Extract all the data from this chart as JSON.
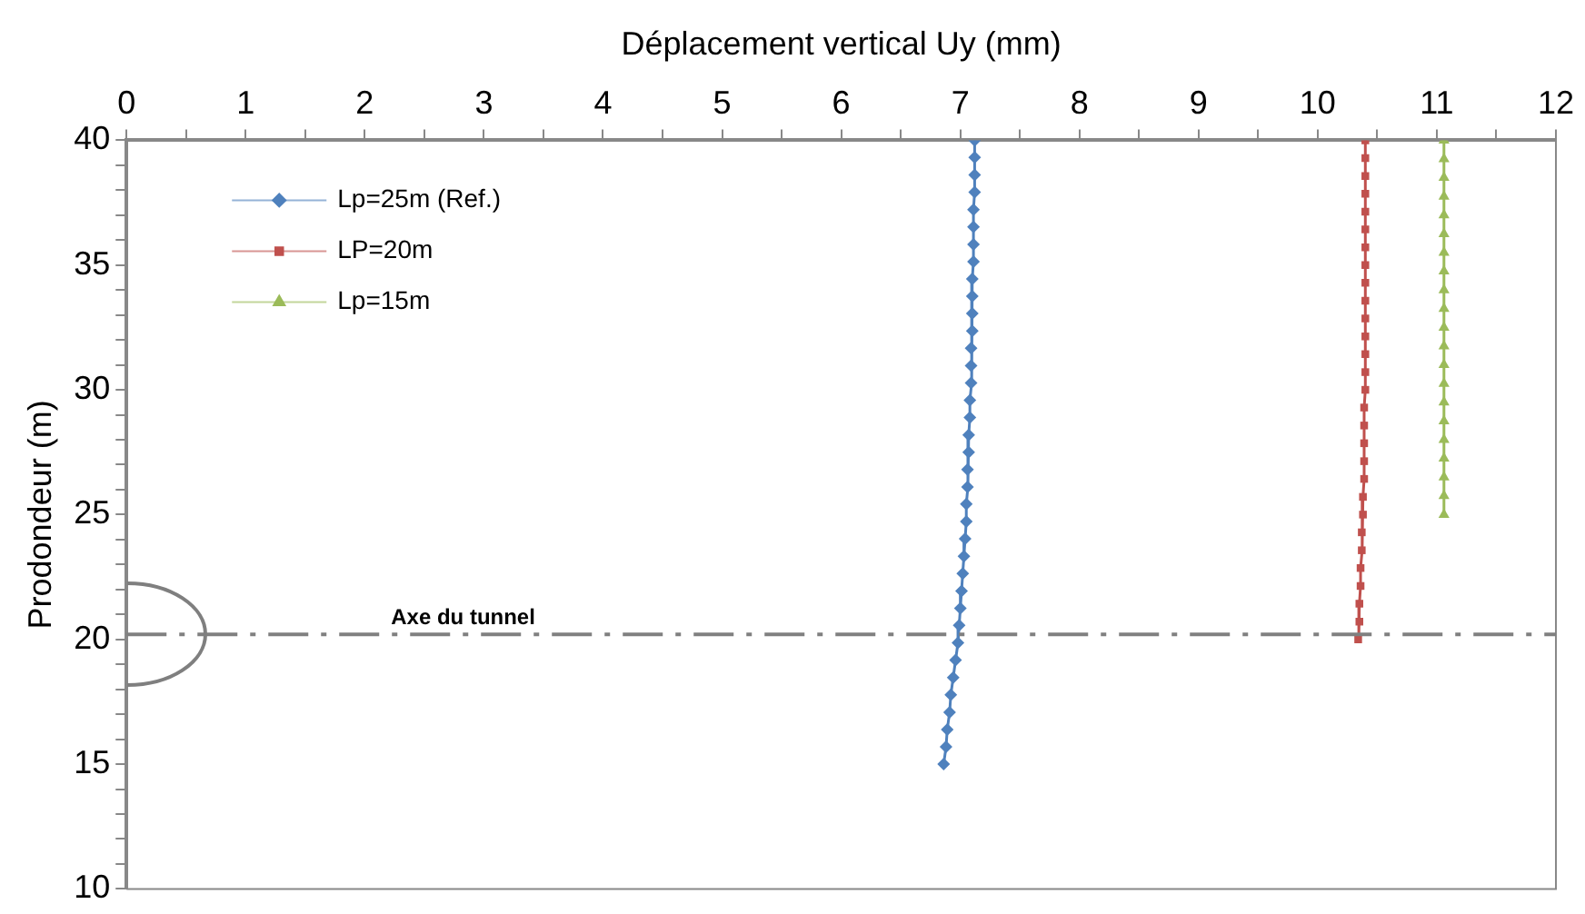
{
  "chart_data": {
    "type": "line",
    "xlabel": "Déplacement vertical Uy (mm)",
    "ylabel": "Prodondeur (m)",
    "xlim": [
      0,
      12
    ],
    "xticks": [
      0,
      {
        "value": 0.5,
        "label": null
      },
      1,
      {
        "value": 1.5,
        "label": null
      },
      2,
      {
        "value": 2.5,
        "label": null
      },
      3,
      {
        "value": 3.5,
        "label": null
      },
      4,
      {
        "value": 4.5,
        "label": null
      },
      5,
      {
        "value": 5.5,
        "label": null
      },
      6,
      {
        "value": 6.5,
        "label": null
      },
      7,
      {
        "value": 7.5,
        "label": null
      },
      8,
      {
        "value": 8.5,
        "label": null
      },
      9,
      {
        "value": 9.5,
        "label": null
      },
      10,
      {
        "value": 10.5,
        "label": null
      },
      11,
      {
        "value": 11.5,
        "label": null
      },
      12
    ],
    "ylim": [
      10,
      40
    ],
    "yticks": [
      10,
      {
        "value": 11,
        "label": null
      },
      {
        "value": 12,
        "label": null
      },
      {
        "value": 13,
        "label": null
      },
      {
        "value": 14,
        "label": null
      },
      15,
      {
        "value": 16,
        "label": null
      },
      {
        "value": 17,
        "label": null
      },
      {
        "value": 18,
        "label": null
      },
      {
        "value": 19,
        "label": null
      },
      20,
      {
        "value": 21,
        "label": null
      },
      {
        "value": 22,
        "label": null
      },
      {
        "value": 23,
        "label": null
      },
      {
        "value": 24,
        "label": null
      },
      25,
      {
        "value": 26,
        "label": null
      },
      {
        "value": 27,
        "label": null
      },
      {
        "value": 28,
        "label": null
      },
      {
        "value": 29,
        "label": null
      },
      30,
      {
        "value": 31,
        "label": null
      },
      {
        "value": 32,
        "label": null
      },
      {
        "value": 33,
        "label": null
      },
      {
        "value": 34,
        "label": null
      },
      35,
      {
        "value": 36,
        "label": null
      },
      {
        "value": 37,
        "label": null
      },
      {
        "value": 38,
        "label": null
      },
      {
        "value": 39,
        "label": null
      },
      40
    ],
    "grid": false,
    "legend": "top left",
    "ref_lines": [
      {
        "axis": "y",
        "value": 20.2,
        "label": "Axe du tunnel",
        "color": "#808080",
        "line_style": "dashdot"
      }
    ],
    "series": [
      {
        "name": "Lp=25m (Ref.)",
        "color": "#4f81bd",
        "marker": "diamond",
        "x": [
          7.12,
          7.12,
          7.12,
          7.12,
          7.11,
          7.11,
          7.11,
          7.11,
          7.1,
          7.1,
          7.1,
          7.1,
          7.09,
          7.09,
          7.09,
          7.08,
          7.08,
          7.07,
          7.07,
          7.06,
          7.06,
          7.05,
          7.05,
          7.04,
          7.03,
          7.02,
          7.01,
          7.0,
          6.99,
          6.98,
          6.96,
          6.94,
          6.92,
          6.91,
          6.89,
          6.88,
          6.86
        ],
        "values": [
          40,
          39.31,
          38.61,
          37.92,
          37.22,
          36.53,
          35.83,
          35.14,
          34.44,
          33.75,
          33.06,
          32.36,
          31.67,
          30.97,
          30.28,
          29.58,
          28.89,
          28.19,
          27.5,
          26.81,
          26.11,
          25.42,
          24.72,
          24.03,
          23.33,
          22.64,
          21.94,
          21.25,
          20.56,
          19.86,
          19.17,
          18.47,
          17.78,
          17.08,
          16.39,
          15.69,
          15
        ]
      },
      {
        "name": "LP=20m",
        "color": "#c0504d",
        "marker": "square",
        "x": [
          10.4,
          10.4,
          10.4,
          10.4,
          10.4,
          10.4,
          10.4,
          10.4,
          10.4,
          10.4,
          10.4,
          10.4,
          10.4,
          10.4,
          10.4,
          10.39,
          10.39,
          10.39,
          10.39,
          10.39,
          10.38,
          10.38,
          10.37,
          10.37,
          10.36,
          10.36,
          10.35,
          10.35,
          10.34
        ],
        "values": [
          40,
          39.29,
          38.57,
          37.86,
          37.14,
          36.43,
          35.71,
          35,
          34.29,
          33.57,
          32.86,
          32.14,
          31.43,
          30.71,
          30,
          29.29,
          28.57,
          27.86,
          27.14,
          26.43,
          25.71,
          25,
          24.29,
          23.57,
          22.86,
          22.14,
          21.43,
          20.71,
          20
        ]
      },
      {
        "name": "Lp=15m",
        "color": "#9bbb59",
        "marker": "triangle",
        "x": [
          11.06,
          11.06,
          11.06,
          11.06,
          11.06,
          11.06,
          11.06,
          11.06,
          11.06,
          11.06,
          11.06,
          11.06,
          11.06,
          11.06,
          11.06,
          11.06,
          11.06,
          11.06,
          11.06,
          11.06,
          11.06
        ],
        "values": [
          40,
          39.25,
          38.5,
          37.75,
          37,
          36.25,
          35.5,
          34.75,
          34,
          33.25,
          32.5,
          31.75,
          31,
          30.25,
          29.5,
          28.75,
          28,
          27.25,
          26.5,
          25.75,
          25
        ]
      }
    ]
  }
}
